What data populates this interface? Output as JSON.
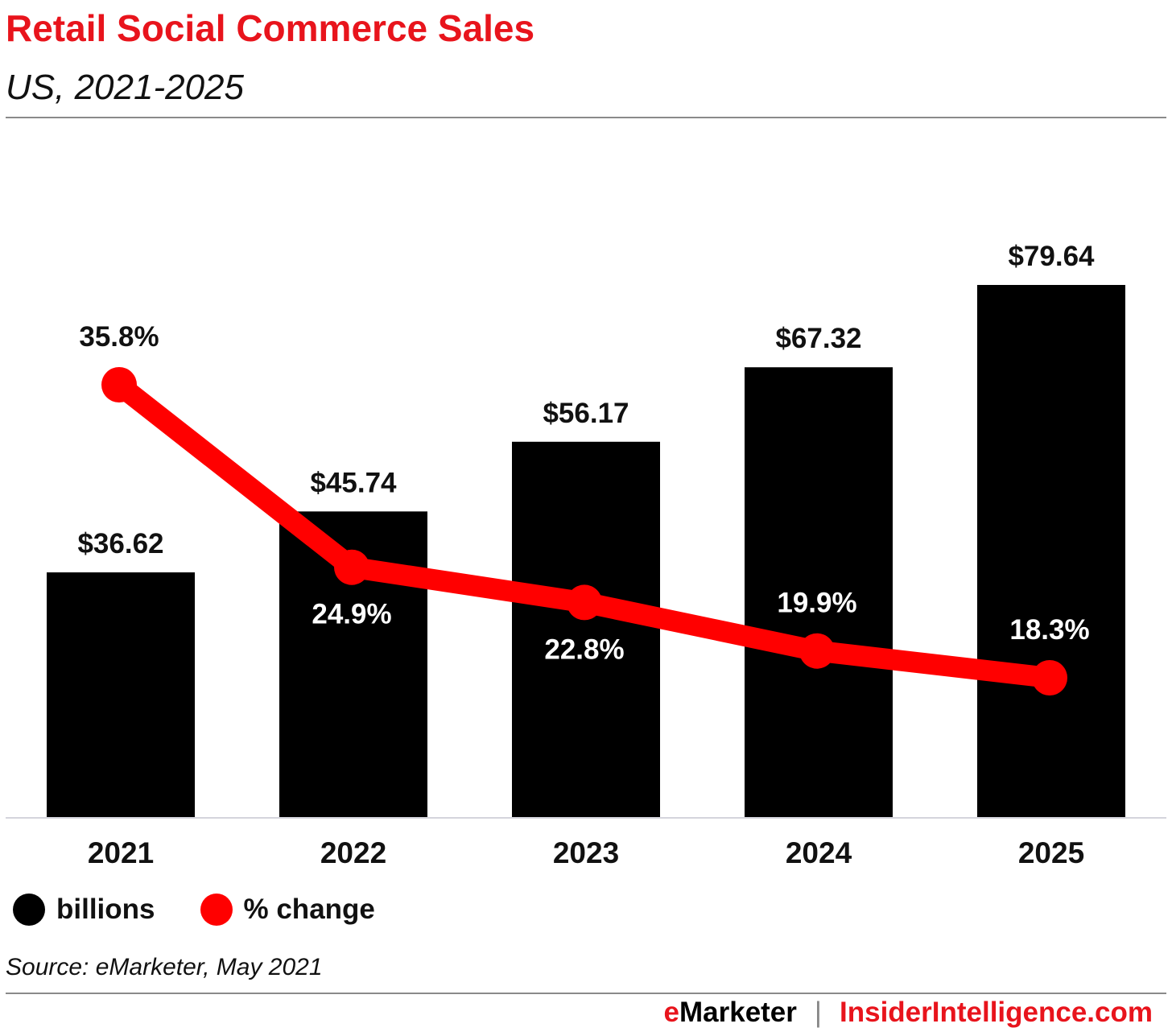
{
  "chart_data": {
    "type": "bar",
    "title": "Retail Social Commerce Sales",
    "subtitle": "US, 2021-2025",
    "categories": [
      "2021",
      "2022",
      "2023",
      "2024",
      "2025"
    ],
    "series": [
      {
        "name": "billions",
        "type": "bar",
        "color": "#000000",
        "values": [
          36.62,
          45.74,
          56.17,
          67.32,
          79.64
        ],
        "labels": [
          "$36.62",
          "$45.74",
          "$56.17",
          "$67.32",
          "$79.64"
        ]
      },
      {
        "name": "% change",
        "type": "line",
        "color": "#ff0000",
        "values": [
          35.8,
          24.9,
          22.8,
          19.9,
          18.3
        ],
        "labels": [
          "35.8%",
          "24.9%",
          "22.8%",
          "19.9%",
          "18.3%"
        ]
      }
    ],
    "xlabel": "",
    "ylabel": "",
    "legend_position": "bottom-left",
    "grid": false
  },
  "source": "Source: eMarketer, May 2021",
  "footer": {
    "brand_e": "e",
    "brand_rest": "Marketer",
    "separator": "|",
    "site": "InsiderIntelligence.com"
  }
}
